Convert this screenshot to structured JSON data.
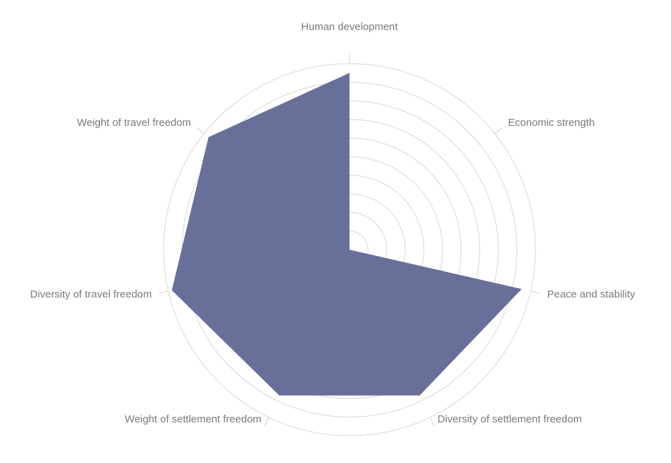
{
  "chart_data": {
    "type": "radar",
    "categories": [
      "Human development",
      "Economic strength",
      "Peace and stability",
      "Diversity of settlement freedom",
      "Weight of settlement freedom",
      "Diversity of travel freedom",
      "Weight of travel freedom"
    ],
    "values": [
      95,
      0,
      95,
      87,
      87,
      98,
      97
    ],
    "color": "#5b6491",
    "rlim": [
      0,
      100
    ],
    "rings": 10
  }
}
